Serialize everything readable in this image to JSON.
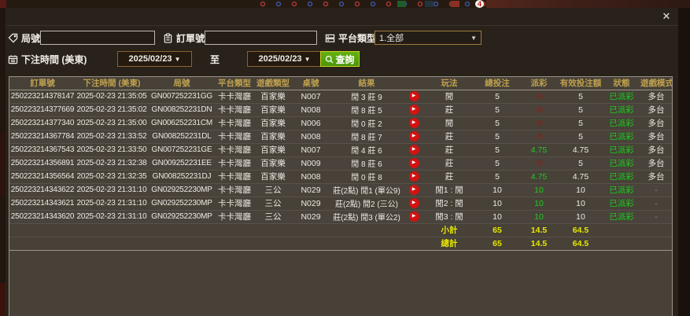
{
  "dialog": {
    "close_label": "✕"
  },
  "filters": {
    "round_label": "局號",
    "order_label": "訂單號",
    "platform_label": "平台類型",
    "platform_value": "1.全部",
    "bet_time_label": "下注時間 (美東)",
    "date_from": "2025/02/23",
    "to_label": "至",
    "date_to": "2025/02/23",
    "search_label": "查詢",
    "round_input_value": "",
    "order_input_value": ""
  },
  "icons": {
    "round": "tag-icon",
    "order": "clipboard-icon",
    "platform": "list-icon",
    "bet_time": "calendar-icon",
    "search": "magnifier-icon",
    "close": "x-icon",
    "replay": "play-circle-icon",
    "dropdown": "chevron-down-icon"
  },
  "colors": {
    "positive_green": "#1ecb1e",
    "negative_red": "#b30d0d",
    "totals_yellow": "#e6e600",
    "header_gold": "#bfa14f",
    "button_green": "#53a011",
    "row_bg": "#474138",
    "dialog_bg": "#29221a"
  },
  "table": {
    "headers": [
      "訂單號",
      "下注時間 (美東)",
      "局號",
      "平台類型",
      "遊戲類型",
      "桌號",
      "結果",
      "",
      "玩法",
      "總投注",
      "派彩",
      "有效投注額",
      "狀態",
      "遊戲模式"
    ],
    "rows": [
      {
        "order_id": "250223214378147",
        "bet_time": "2025-02-23 21:35:05",
        "round_id": "GN007252231GG",
        "platform": "卡卡灣廳",
        "game_type": "百家樂",
        "table_no": "N007",
        "result": "閒 3 莊 9",
        "play_method": "閒",
        "total_bet": "5",
        "payout": "-5",
        "valid_bet": "5",
        "status": "已派彩",
        "game_mode": "多台"
      },
      {
        "order_id": "250223214377669",
        "bet_time": "2025-02-23 21:35:02",
        "round_id": "GN008252231DN",
        "platform": "卡卡灣廳",
        "game_type": "百家樂",
        "table_no": "N008",
        "result": "閒 8 莊 5",
        "play_method": "莊",
        "total_bet": "5",
        "payout": "-5",
        "valid_bet": "5",
        "status": "已派彩",
        "game_mode": "多台"
      },
      {
        "order_id": "250223214377340",
        "bet_time": "2025-02-23 21:35:00",
        "round_id": "GN006252231CM",
        "platform": "卡卡灣廳",
        "game_type": "百家樂",
        "table_no": "N006",
        "result": "閒 0 莊 2",
        "play_method": "閒",
        "total_bet": "5",
        "payout": "-5",
        "valid_bet": "5",
        "status": "已派彩",
        "game_mode": "多台"
      },
      {
        "order_id": "250223214367784",
        "bet_time": "2025-02-23 21:33:52",
        "round_id": "GN008252231DL",
        "platform": "卡卡灣廳",
        "game_type": "百家樂",
        "table_no": "N008",
        "result": "閒 8 莊 7",
        "play_method": "莊",
        "total_bet": "5",
        "payout": "-5",
        "valid_bet": "5",
        "status": "已派彩",
        "game_mode": "多台"
      },
      {
        "order_id": "250223214367543",
        "bet_time": "2025-02-23 21:33:50",
        "round_id": "GN007252231GE",
        "platform": "卡卡灣廳",
        "game_type": "百家樂",
        "table_no": "N007",
        "result": "閒 4 莊 6",
        "play_method": "莊",
        "total_bet": "5",
        "payout": "4.75",
        "valid_bet": "4.75",
        "status": "已派彩",
        "game_mode": "多台"
      },
      {
        "order_id": "250223214356891",
        "bet_time": "2025-02-23 21:32:38",
        "round_id": "GN009252231EE",
        "platform": "卡卡灣廳",
        "game_type": "百家樂",
        "table_no": "N009",
        "result": "閒 8 莊 6",
        "play_method": "莊",
        "total_bet": "5",
        "payout": "-5",
        "valid_bet": "5",
        "status": "已派彩",
        "game_mode": "多台"
      },
      {
        "order_id": "250223214356564",
        "bet_time": "2025-02-23 21:32:35",
        "round_id": "GN008252231DJ",
        "platform": "卡卡灣廳",
        "game_type": "百家樂",
        "table_no": "N008",
        "result": "閒 0 莊 8",
        "play_method": "莊",
        "total_bet": "5",
        "payout": "4.75",
        "valid_bet": "4.75",
        "status": "已派彩",
        "game_mode": "多台"
      },
      {
        "order_id": "250223214343622",
        "bet_time": "2025-02-23 21:31:10",
        "round_id": "GN029252230MP",
        "platform": "卡卡灣廳",
        "game_type": "三公",
        "table_no": "N029",
        "result": "莊(2點) 閒1 (單公9)",
        "play_method": "閒1 : 閒",
        "total_bet": "10",
        "payout": "10",
        "valid_bet": "10",
        "status": "已派彩",
        "game_mode": "-"
      },
      {
        "order_id": "250223214343621",
        "bet_time": "2025-02-23 21:31:10",
        "round_id": "GN029252230MP",
        "platform": "卡卡灣廳",
        "game_type": "三公",
        "table_no": "N029",
        "result": "莊(2點) 閒2 (三公)",
        "play_method": "閒2 : 閒",
        "total_bet": "10",
        "payout": "10",
        "valid_bet": "10",
        "status": "已派彩",
        "game_mode": "-"
      },
      {
        "order_id": "250223214343620",
        "bet_time": "2025-02-23 21:31:10",
        "round_id": "GN029252230MP",
        "platform": "卡卡灣廳",
        "game_type": "三公",
        "table_no": "N029",
        "result": "莊(2點) 閒3 (單公2)",
        "play_method": "閒3 : 閒",
        "total_bet": "10",
        "payout": "10",
        "valid_bet": "10",
        "status": "已派彩",
        "game_mode": "-"
      }
    ],
    "subtotal": {
      "label": "小計",
      "total_bet": "65",
      "payout": "14.5",
      "valid_bet": "64.5"
    },
    "total": {
      "label": "總計",
      "total_bet": "65",
      "payout": "14.5",
      "valid_bet": "64.5"
    }
  }
}
